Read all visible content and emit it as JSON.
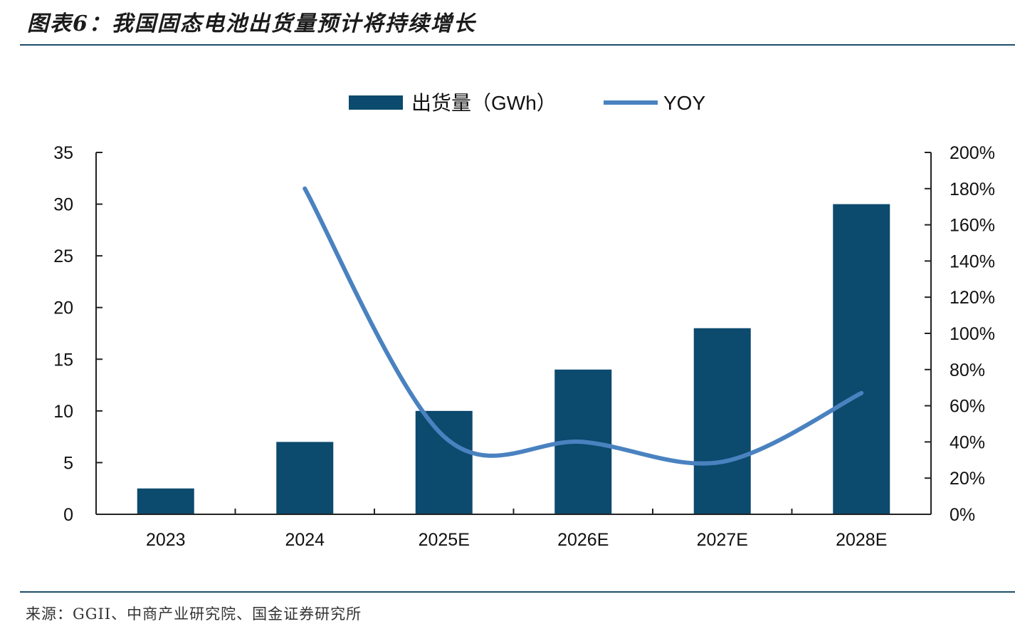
{
  "title": "图表6：我国固态电池出货量预计将持续增长",
  "source": "来源：GGII、中商产业研究院、国金证券研究所",
  "colors": {
    "bar": "#0c4a6e",
    "line": "#4a82c0",
    "rule": "#1f4e6b"
  },
  "chart_data": {
    "type": "bar",
    "categories": [
      "2023",
      "2024",
      "2025E",
      "2026E",
      "2027E",
      "2028E"
    ],
    "series": [
      {
        "name": "出货量（GWh）",
        "type": "bar",
        "axis": "left",
        "values": [
          2.5,
          7,
          10,
          14,
          18,
          30
        ]
      },
      {
        "name": "YOY",
        "type": "line",
        "axis": "right",
        "values": [
          null,
          1.8,
          0.43,
          0.4,
          0.29,
          0.67
        ]
      }
    ],
    "y_left": {
      "min": 0,
      "max": 35,
      "ticks": [
        0,
        5,
        10,
        15,
        20,
        25,
        30,
        35
      ],
      "tick_labels": [
        "0",
        "5",
        "10",
        "15",
        "20",
        "25",
        "30",
        "35"
      ]
    },
    "y_right": {
      "min": 0,
      "max": 2,
      "ticks": [
        0,
        0.2,
        0.4,
        0.6,
        0.8,
        1.0,
        1.2,
        1.4,
        1.6,
        1.8,
        2.0
      ],
      "tick_labels": [
        "0%",
        "20%",
        "40%",
        "60%",
        "80%",
        "100%",
        "120%",
        "140%",
        "160%",
        "180%",
        "200%"
      ]
    },
    "grid": false,
    "legend_position": "top-center"
  }
}
